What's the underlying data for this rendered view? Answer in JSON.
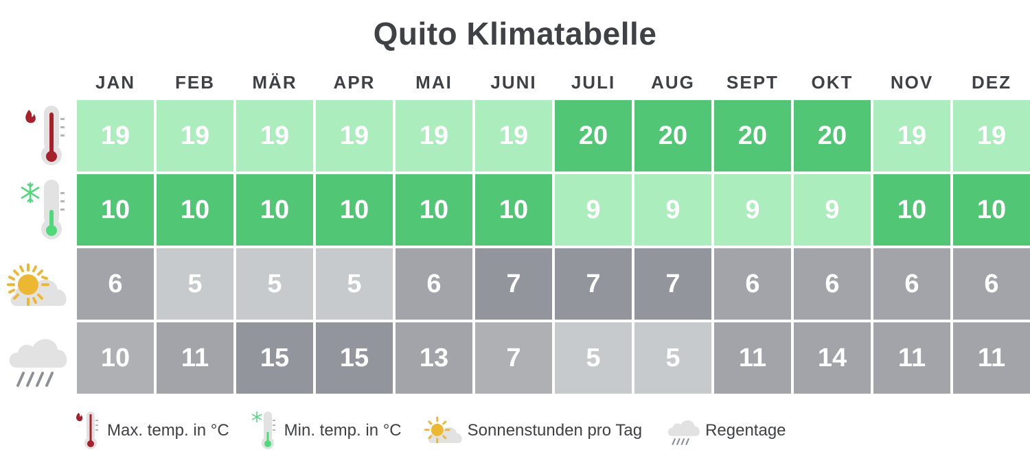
{
  "title": "Quito Klimatabelle",
  "months": [
    "JAN",
    "FEB",
    "MÄR",
    "APR",
    "MAI",
    "JUNI",
    "JULI",
    "AUG",
    "SEPT",
    "OKT",
    "NOV",
    "DEZ"
  ],
  "rows": [
    {
      "key": "max_temp",
      "icon": "thermometer-hot-icon",
      "values": [
        "19",
        "19",
        "19",
        "19",
        "19",
        "19",
        "20",
        "20",
        "20",
        "20",
        "19",
        "19"
      ],
      "colors": [
        "#abedbd",
        "#abedbd",
        "#abedbd",
        "#abedbd",
        "#abedbd",
        "#abedbd",
        "#51c775",
        "#51c775",
        "#51c775",
        "#51c775",
        "#abedbd",
        "#abedbd"
      ]
    },
    {
      "key": "min_temp",
      "icon": "thermometer-cold-icon",
      "values": [
        "10",
        "10",
        "10",
        "10",
        "10",
        "10",
        "9",
        "9",
        "9",
        "9",
        "10",
        "10"
      ],
      "colors": [
        "#51c775",
        "#51c775",
        "#51c775",
        "#51c775",
        "#51c775",
        "#51c775",
        "#abedbd",
        "#abedbd",
        "#abedbd",
        "#abedbd",
        "#51c775",
        "#51c775"
      ]
    },
    {
      "key": "sun_hours",
      "icon": "sun-cloud-icon",
      "values": [
        "6",
        "5",
        "5",
        "5",
        "6",
        "7",
        "7",
        "7",
        "6",
        "6",
        "6",
        "6"
      ],
      "colors": [
        "#a2a4a9",
        "#c7cacd",
        "#c7cacd",
        "#c7cacd",
        "#a2a4a9",
        "#93959d",
        "#93959d",
        "#93959d",
        "#a2a4a9",
        "#a2a4a9",
        "#a2a4a9",
        "#a2a4a9"
      ]
    },
    {
      "key": "rain_days",
      "icon": "rain-cloud-icon",
      "values": [
        "10",
        "11",
        "15",
        "15",
        "13",
        "7",
        "5",
        "5",
        "11",
        "14",
        "11",
        "11"
      ],
      "colors": [
        "#aeb0b4",
        "#a2a4a9",
        "#93959d",
        "#93959d",
        "#a2a4a9",
        "#aeb0b4",
        "#c7cacd",
        "#c7cacd",
        "#a2a4a9",
        "#a2a4a9",
        "#a2a4a9",
        "#a2a4a9"
      ]
    }
  ],
  "legend": {
    "max_temp": "Max. temp. in °C",
    "min_temp": "Min. temp. in °C",
    "sun_hours": "Sonnenstunden pro Tag",
    "rain_days": "Regentage"
  },
  "colors": {
    "green_light": "#abedbd",
    "green_dark": "#51c775",
    "gray_light": "#c7cacd",
    "gray_midlight": "#aeb0b4",
    "gray_mid": "#a2a4a9",
    "gray_dark": "#93959d",
    "flame": "#a8202a",
    "snow": "#4fd97a",
    "sun": "#ecb731"
  },
  "chart_data": {
    "type": "table",
    "title": "Quito Klimatabelle",
    "categories": [
      "JAN",
      "FEB",
      "MÄR",
      "APR",
      "MAI",
      "JUNI",
      "JULI",
      "AUG",
      "SEPT",
      "OKT",
      "NOV",
      "DEZ"
    ],
    "series": [
      {
        "name": "Max. temp. in °C",
        "values": [
          19,
          19,
          19,
          19,
          19,
          19,
          20,
          20,
          20,
          20,
          19,
          19
        ]
      },
      {
        "name": "Min. temp. in °C",
        "values": [
          10,
          10,
          10,
          10,
          10,
          10,
          9,
          9,
          9,
          9,
          10,
          10
        ]
      },
      {
        "name": "Sonnenstunden pro Tag",
        "values": [
          6,
          5,
          5,
          5,
          6,
          7,
          7,
          7,
          6,
          6,
          6,
          6
        ]
      },
      {
        "name": "Regentage",
        "values": [
          10,
          11,
          15,
          15,
          13,
          7,
          5,
          5,
          11,
          14,
          11,
          11
        ]
      }
    ],
    "legend_position": "bottom"
  }
}
